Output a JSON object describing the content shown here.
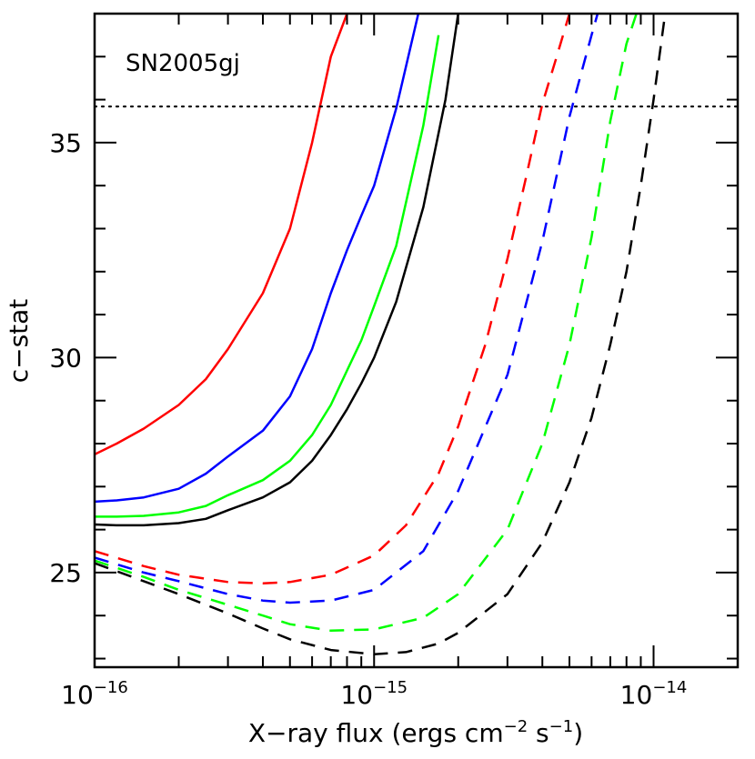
{
  "chart_data": {
    "type": "line",
    "title": "",
    "annotation": "SN2005gj",
    "xlabel": {
      "prefix": "X−ray flux (ergs cm",
      "exp1": "−2",
      "mid": " s",
      "exp2": "−1",
      "suffix": ")"
    },
    "ylabel": "c−stat",
    "x_scale": "log",
    "xlim": [
      1e-16,
      2e-14
    ],
    "ylim": [
      22.8,
      38.0
    ],
    "x_ticks": [
      {
        "value": 1e-16,
        "base": "10",
        "exp": "−16"
      },
      {
        "value": 1e-15,
        "base": "10",
        "exp": "−15"
      },
      {
        "value": 1e-14,
        "base": "10",
        "exp": "−14"
      }
    ],
    "y_ticks": [
      {
        "value": 25,
        "label": "25"
      },
      {
        "value": 30,
        "label": "30"
      },
      {
        "value": 35,
        "label": "35"
      }
    ],
    "y_minor_step": 1,
    "threshold": {
      "y": 35.84,
      "style": "dotted",
      "color": "#000000"
    },
    "series": [
      {
        "color": "#ff0000",
        "style": "solid",
        "x": [
          1e-16,
          1.2e-16,
          1.5e-16,
          2e-16,
          2.5e-16,
          3e-16,
          4e-16,
          5e-16,
          6e-16,
          7e-16,
          8e-16
        ],
        "y": [
          27.75,
          28.0,
          28.35,
          28.9,
          29.5,
          30.2,
          31.5,
          33.0,
          35.0,
          37.0,
          38.0
        ]
      },
      {
        "color": "#0000ff",
        "style": "solid",
        "x": [
          1e-16,
          1.2e-16,
          1.5e-16,
          2e-16,
          2.5e-16,
          3e-16,
          4e-16,
          5e-16,
          6e-16,
          7e-16,
          8e-16,
          9e-16,
          1e-15,
          1.2e-15,
          1.5e-15
        ],
        "y": [
          26.65,
          26.68,
          26.75,
          26.95,
          27.3,
          27.7,
          28.3,
          29.1,
          30.2,
          31.5,
          32.5,
          33.3,
          34.0,
          35.8,
          38.5
        ]
      },
      {
        "color": "#00ff00",
        "style": "solid",
        "x": [
          1e-16,
          1.2e-16,
          1.5e-16,
          2e-16,
          2.5e-16,
          3e-16,
          4e-16,
          5e-16,
          6e-16,
          7e-16,
          8e-16,
          9e-16,
          1e-15,
          1.2e-15,
          1.5e-15,
          1.7e-15
        ],
        "y": [
          26.3,
          26.3,
          26.32,
          26.4,
          26.55,
          26.8,
          27.15,
          27.6,
          28.2,
          28.9,
          29.7,
          30.4,
          31.2,
          32.6,
          35.4,
          37.5
        ]
      },
      {
        "color": "#000000",
        "style": "solid",
        "x": [
          1e-16,
          1.2e-16,
          1.5e-16,
          2e-16,
          2.5e-16,
          3e-16,
          4e-16,
          5e-16,
          6e-16,
          7e-16,
          8e-16,
          9e-16,
          1e-15,
          1.2e-15,
          1.5e-15,
          1.8e-15,
          2e-15
        ],
        "y": [
          26.12,
          26.1,
          26.1,
          26.15,
          26.25,
          26.45,
          26.75,
          27.1,
          27.6,
          28.2,
          28.8,
          29.4,
          30.0,
          31.3,
          33.5,
          36.0,
          38.0
        ]
      },
      {
        "color": "#ff0000",
        "style": "dashed",
        "x": [
          1e-16,
          1.5e-16,
          2e-16,
          3e-16,
          4e-16,
          5e-16,
          7e-16,
          1e-15,
          1.3e-15,
          1.7e-15,
          2e-15,
          2.5e-15,
          3e-15,
          3.5e-15,
          4e-15,
          4.5e-15,
          5e-15
        ],
        "y": [
          25.5,
          25.15,
          24.95,
          24.78,
          24.75,
          24.78,
          24.95,
          25.4,
          26.1,
          27.3,
          28.4,
          30.3,
          32.3,
          34.2,
          35.9,
          37.0,
          38.0
        ]
      },
      {
        "color": "#0000ff",
        "style": "dashed",
        "x": [
          1e-16,
          1.5e-16,
          2e-16,
          3e-16,
          4e-16,
          5e-16,
          7e-16,
          1e-15,
          1.5e-15,
          2e-15,
          3e-15,
          4e-15,
          5e-15,
          6e-15,
          6.5e-15
        ],
        "y": [
          25.35,
          25.0,
          24.8,
          24.5,
          24.35,
          24.3,
          24.35,
          24.6,
          25.5,
          26.9,
          29.6,
          32.7,
          35.6,
          37.5,
          38.3
        ]
      },
      {
        "color": "#00ff00",
        "style": "dashed",
        "x": [
          1e-16,
          1.5e-16,
          2e-16,
          3e-16,
          4e-16,
          5e-16,
          7e-16,
          1e-15,
          1.5e-15,
          2e-15,
          3e-15,
          4e-15,
          5e-15,
          6e-15,
          7e-15,
          8e-15,
          9e-15
        ],
        "y": [
          25.28,
          24.9,
          24.6,
          24.25,
          24.0,
          23.8,
          23.65,
          23.68,
          23.95,
          24.5,
          26.0,
          28.0,
          30.3,
          32.8,
          35.5,
          37.3,
          38.3
        ]
      },
      {
        "color": "#000000",
        "style": "dashed",
        "x": [
          1e-16,
          1.5e-16,
          2e-16,
          3e-16,
          4e-16,
          5e-16,
          7e-16,
          1e-15,
          1.3e-15,
          1.7e-15,
          2e-15,
          3e-15,
          4e-15,
          5e-15,
          6e-15,
          7e-15,
          8e-15,
          9e-15,
          1e-14,
          1.1e-14
        ],
        "y": [
          25.22,
          24.8,
          24.5,
          24.05,
          23.7,
          23.45,
          23.2,
          23.1,
          23.15,
          23.35,
          23.6,
          24.5,
          25.7,
          27.1,
          28.6,
          30.3,
          32.0,
          34.0,
          36.0,
          38.0
        ]
      }
    ]
  }
}
